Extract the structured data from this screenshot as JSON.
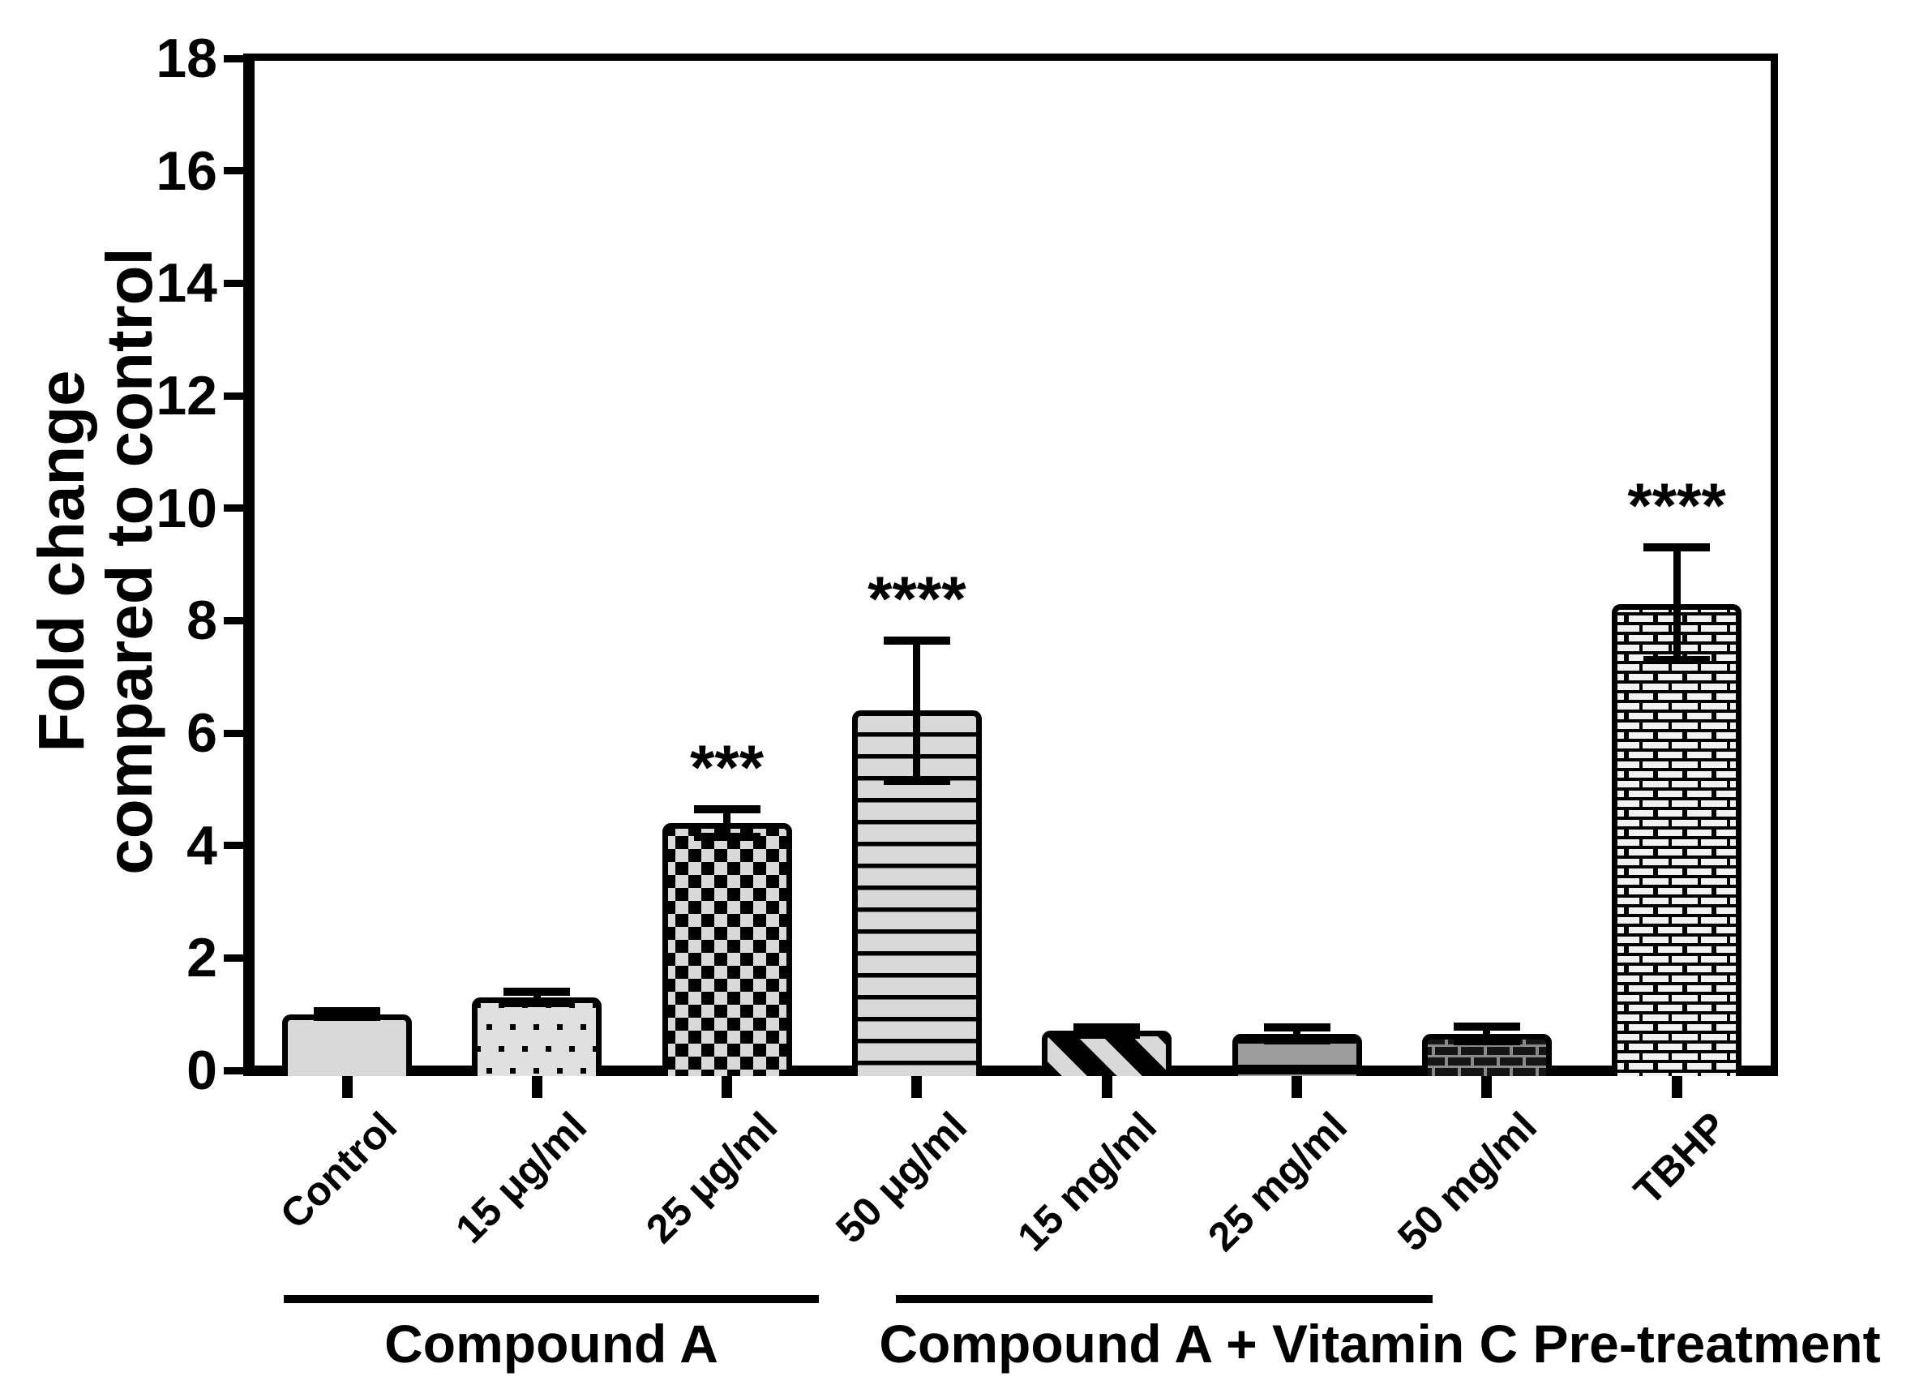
{
  "figure": {
    "background_color": "#ffffff",
    "ink_color": "#000000"
  },
  "chart_data": {
    "type": "bar",
    "title": "",
    "xlabel": "",
    "ylabel_line1": "Fold change",
    "ylabel_line2": "compared to control",
    "ylim": [
      0,
      18
    ],
    "yticks": [
      0,
      2,
      4,
      6,
      8,
      10,
      12,
      14,
      16,
      18
    ],
    "grid": false,
    "legend": false,
    "categories": [
      "Control",
      "15 μg/ml",
      "25 μg/ml",
      "50 μg/ml",
      "15 mg/ml",
      "25 mg/ml",
      "50 mg/ml",
      "TBHP"
    ],
    "values": [
      1.0,
      1.3,
      4.4,
      6.4,
      0.7,
      0.65,
      0.65,
      8.3
    ],
    "errors": [
      0.05,
      0.1,
      0.25,
      1.25,
      0.07,
      0.12,
      0.13,
      1.0
    ],
    "significance": [
      "",
      "",
      "***",
      "****",
      "",
      "",
      "",
      "****"
    ],
    "patterns": [
      "solid",
      "dots",
      "checker",
      "hlines",
      "diag-stripes",
      "hbands",
      "brick-dark",
      "brick-light"
    ],
    "pattern_colors": {
      "light_gray": "#d9d9d9",
      "medium_gray": "#9c9c9c",
      "mortar_gray": "#8a8a8a",
      "brick_white": "#f2f2f2",
      "black": "#000000"
    },
    "groups": [
      {
        "label": "Compound A",
        "members": [
          "15 μg/ml",
          "25 μg/ml",
          "50 μg/ml"
        ]
      },
      {
        "label": "Compound A + Vitamin C Pre-treatment",
        "members": [
          "15 mg/ml",
          "25 mg/ml",
          "50 mg/ml"
        ]
      }
    ]
  }
}
